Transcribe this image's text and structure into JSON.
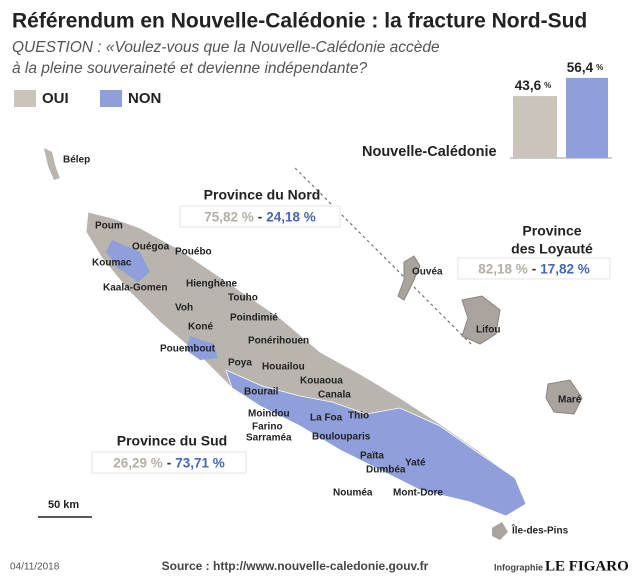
{
  "title": "Référendum en Nouvelle-Calédonie : la fracture Nord-Sud",
  "question": [
    "QUESTION : «Voulez-vous que la Nouvelle-Calédonie accède",
    "à la pleine souveraineté et devienne indépendante?"
  ],
  "chart_data": {
    "type": "bar",
    "title": "Nouvelle-Calédonie",
    "unit": "%",
    "series": [
      {
        "name": "OUI",
        "color": "#cbc4ba",
        "values": [
          43.6
        ],
        "value_labels": [
          "43,6"
        ]
      },
      {
        "name": "NON",
        "color": "#8e9fdb",
        "values": [
          56.4
        ],
        "value_labels": [
          "56,4"
        ]
      }
    ]
  },
  "separator": "-",
  "provinces": [
    {
      "name": [
        "Province du Nord"
      ],
      "oui": "75,82 %",
      "non": "24,18 %"
    },
    {
      "name": [
        "Province",
        "des Loyauté"
      ],
      "oui": "82,18 %",
      "non": "17,82 %"
    },
    {
      "name": [
        "Province du Sud"
      ],
      "oui": "26,29 %",
      "non": "73,71 %"
    }
  ],
  "places": [
    "Bélep",
    "Poum",
    "Ouégoa",
    "Pouébo",
    "Koumac",
    "Kaala-Gomen",
    "Hienghène",
    "Touho",
    "Voh",
    "Poindimié",
    "Koné",
    "Ponérihouen",
    "Pouembout",
    "Poya",
    "Houailou",
    "Kouaoua",
    "Bourail",
    "Canala",
    "Moindou",
    "La Foa",
    "Thio",
    "Farino",
    "Sarraméa",
    "Boulouparis",
    "Païta",
    "Yaté",
    "Dumbéa",
    "Nouméa",
    "Mont-Dore",
    "Ouvéa",
    "Lifou",
    "Maré",
    "Île-des-Pins"
  ],
  "scale": "50 km",
  "date": "04/11/2018",
  "source": "Source : http://www.nouvelle-caledonie.gouv.fr",
  "credit": "Infographie",
  "brand": "LE FIGARO"
}
